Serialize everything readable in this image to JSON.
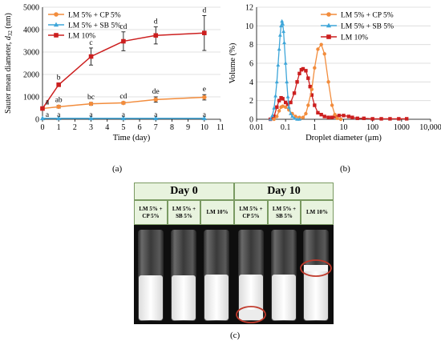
{
  "chart_data": [
    {
      "type": "line",
      "panel": "(a)",
      "xlabel": "Time (day)",
      "ylabel_main": "Sauter mean diameter, ",
      "ylabel_sym": "d",
      "ylabel_sub": "32",
      "ylabel_unit": " (nm)",
      "xlim": [
        0,
        11
      ],
      "ylim": [
        0,
        5000
      ],
      "xticks": [
        "0",
        "1",
        "2",
        "3",
        "4",
        "5",
        "6",
        "7",
        "8",
        "9",
        "10",
        "11"
      ],
      "yticks": [
        "0",
        "1000",
        "2000",
        "3000",
        "4000",
        "5000"
      ],
      "x": [
        0,
        1,
        3,
        5,
        7,
        10
      ],
      "series": [
        {
          "name": "LM 5% + CP 5%",
          "color": "#f28c3c",
          "marker": "circle",
          "values": [
            480,
            560,
            690,
            730,
            880,
            980
          ],
          "errors": [
            40,
            60,
            60,
            50,
            120,
            120
          ],
          "letters": [
            "a",
            "ab",
            "bc",
            "cd",
            "de",
            "e"
          ]
        },
        {
          "name": "LM 5% + SB 5%",
          "color": "#3ea6d9",
          "marker": "triangle",
          "values": [
            40,
            40,
            40,
            40,
            40,
            40
          ],
          "errors": [
            0,
            0,
            0,
            0,
            0,
            0
          ],
          "letters": [
            "a",
            "a",
            "a",
            "a",
            "a",
            "a"
          ]
        },
        {
          "name": "LM 10%",
          "color": "#cc1f1f",
          "marker": "square",
          "values": [
            480,
            1540,
            2800,
            3480,
            3740,
            3850
          ],
          "errors": [
            60,
            80,
            380,
            420,
            380,
            780
          ],
          "letters": [
            "a",
            "b",
            "c",
            "cd",
            "d",
            "d"
          ]
        }
      ]
    },
    {
      "type": "line",
      "panel": "(b)",
      "xlabel": "Droplet diameter (μm)",
      "ylabel": "Volume (%)",
      "xscale": "log",
      "xlim": [
        0.01,
        10000
      ],
      "ylim": [
        0,
        12
      ],
      "xticks": [
        "0.01",
        "0.1",
        "1",
        "10",
        "100",
        "1000",
        "10,000"
      ],
      "yticks": [
        "0",
        "2",
        "4",
        "6",
        "8",
        "10",
        "12"
      ],
      "series": [
        {
          "name": "LM 5% + CP 5%",
          "color": "#f28c3c",
          "marker": "circle",
          "x": [
            0.04,
            0.05,
            0.06,
            0.07,
            0.08,
            0.1,
            0.13,
            0.17,
            0.22,
            0.3,
            0.4,
            0.5,
            0.6,
            0.8,
            1.0,
            1.3,
            1.7,
            2.2,
            3.0,
            4.0,
            5.0,
            6.0,
            8.0
          ],
          "values": [
            0.0,
            0.3,
            0.9,
            1.3,
            1.4,
            1.3,
            1.0,
            0.6,
            0.3,
            0.2,
            0.2,
            0.6,
            1.5,
            3.2,
            5.5,
            7.5,
            8.0,
            7.0,
            4.0,
            1.5,
            0.5,
            0.1,
            0.0
          ]
        },
        {
          "name": "LM 5% + SB 5%",
          "color": "#3ea6d9",
          "marker": "triangle",
          "x": [
            0.03,
            0.035,
            0.04,
            0.045,
            0.05,
            0.055,
            0.06,
            0.065,
            0.07,
            0.075,
            0.08,
            0.085,
            0.09,
            0.1,
            0.11,
            0.12,
            0.13,
            0.15,
            0.17,
            0.2,
            0.25,
            0.3
          ],
          "values": [
            0.0,
            0.4,
            1.2,
            2.5,
            4.0,
            5.8,
            7.5,
            9.0,
            10.0,
            10.5,
            10.2,
            9.4,
            8.2,
            6.0,
            4.0,
            2.4,
            1.3,
            0.6,
            0.3,
            0.1,
            0.0,
            0.0
          ]
        },
        {
          "name": "LM 10%",
          "color": "#cc1f1f",
          "marker": "square",
          "x": [
            0.03,
            0.04,
            0.05,
            0.06,
            0.07,
            0.08,
            0.1,
            0.12,
            0.15,
            0.2,
            0.25,
            0.3,
            0.35,
            0.4,
            0.5,
            0.6,
            0.7,
            0.8,
            1.0,
            1.3,
            1.7,
            2.2,
            3.0,
            4.0,
            5.0,
            7.0,
            10,
            15,
            20,
            30,
            50,
            100,
            200,
            400,
            800,
            1500
          ],
          "values": [
            0.0,
            0.3,
            1.3,
            2.0,
            2.3,
            2.2,
            1.8,
            1.6,
            1.8,
            2.8,
            4.0,
            4.9,
            5.3,
            5.4,
            5.2,
            4.4,
            3.5,
            2.6,
            1.5,
            0.7,
            0.5,
            0.3,
            0.2,
            0.2,
            0.3,
            0.4,
            0.4,
            0.3,
            0.2,
            0.1,
            0.1,
            0.05,
            0.05,
            0.05,
            0.05,
            0.05
          ]
        }
      ]
    }
  ],
  "photo": {
    "panel": "(c)",
    "day0_label": "Day 0",
    "day10_label": "Day 10",
    "columns": [
      "LM 5% +\nCP 5%",
      "LM 5% +\nSB 5%",
      "LM 10%",
      "LM 5% +\nCP 5%",
      "LM 5% +\nSB 5%",
      "LM 10%"
    ],
    "circle_color": "#c0392b"
  }
}
